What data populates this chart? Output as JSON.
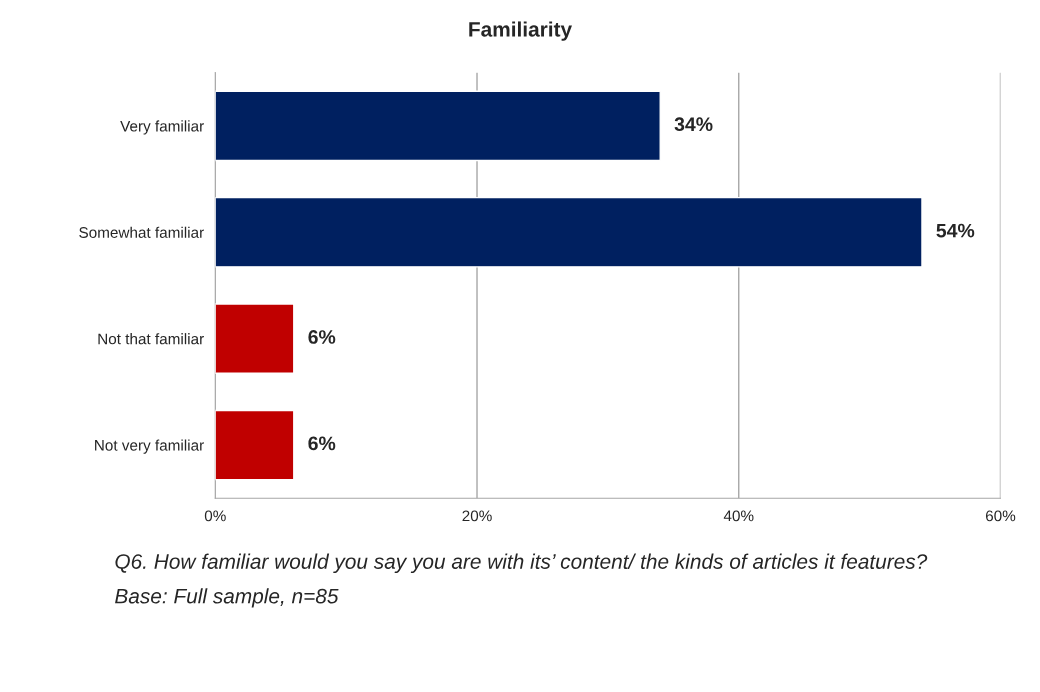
{
  "chart_data": {
    "type": "bar",
    "orientation": "horizontal",
    "title": "Familiarity",
    "categories": [
      "Very familiar",
      "Somewhat familiar",
      "Not that familiar",
      "Not very familiar"
    ],
    "values": [
      34,
      54,
      6,
      6
    ],
    "colors": [
      "#002060",
      "#002060",
      "#c00000",
      "#c00000"
    ],
    "value_labels": [
      "34%",
      "54%",
      "6%",
      "6%"
    ],
    "xlim": [
      0,
      60
    ],
    "xticks": [
      {
        "value": 0,
        "label": "0%"
      },
      {
        "value": 20,
        "label": "20%"
      },
      {
        "value": 40,
        "label": "40%"
      },
      {
        "value": 60,
        "label": "60%"
      }
    ],
    "grid": "x",
    "annotations": [
      "Q6. How familiar would you say you are with its’ content/ the kinds of articles it features?",
      "Base: Full sample, n=85"
    ]
  }
}
